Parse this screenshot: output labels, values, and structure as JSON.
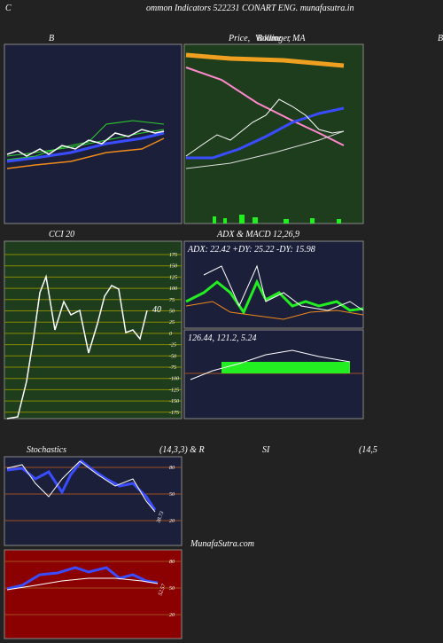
{
  "header": {
    "left": "C",
    "title": "ommon  Indicators 522231 CONART ENG. munafasutra.in"
  },
  "panels": {
    "bollinger": {
      "title": "B"
    },
    "price": {
      "title": "Price,",
      "title_mid": "Volume",
      "title_over": "Bollinger",
      "title_end": ", MA",
      "edge": "B"
    },
    "cci": {
      "title": "CCI 20",
      "ticks": [
        "175",
        "150",
        "125",
        "100",
        "75",
        "50",
        "25",
        "0",
        "-25",
        "-50",
        "-75",
        "-100",
        "-125",
        "-150",
        "-175"
      ],
      "label": "40"
    },
    "adx": {
      "title": "ADX  & MACD 12,26,9",
      "readout": "ADX: 22.42  +DY: 25.22  -DY: 15.98"
    },
    "macd": {
      "readout": "126.44,  121.2,  5.24"
    },
    "stoch": {
      "title": "Stochastics",
      "params": "(14,3,3) & R",
      "title2": "SI",
      "params2": "(14,5",
      "ticks": [
        "80",
        "50",
        "20"
      ],
      "label": "38.73"
    },
    "rsi": {
      "ticks": [
        "80",
        "50",
        "20"
      ],
      "label": "52.57"
    }
  },
  "watermark": "MunafaSutra.com"
}
